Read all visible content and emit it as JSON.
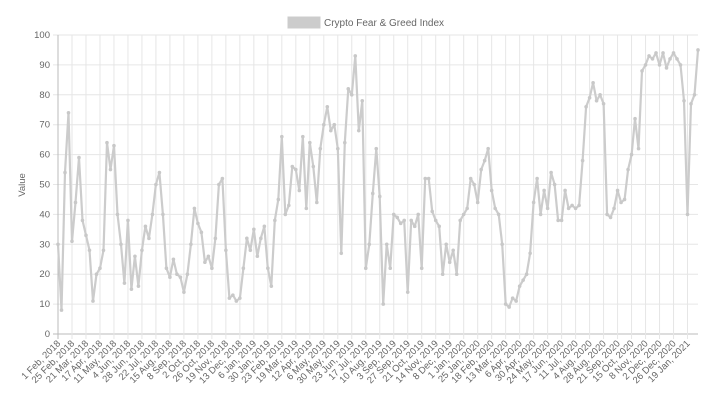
{
  "chart_data": {
    "type": "line",
    "legend": {
      "position": "top",
      "entries": [
        "Crypto Fear & Greed Index"
      ]
    },
    "series": [
      {
        "name": "Crypto Fear & Greed Index",
        "color": "#cccccc",
        "values": [
          30,
          8,
          54,
          74,
          31,
          44,
          59,
          38,
          33,
          28,
          11,
          20,
          22,
          28,
          64,
          55,
          63,
          40,
          30,
          17,
          38,
          15,
          26,
          16,
          28,
          36,
          32,
          40,
          50,
          54,
          40,
          22,
          19,
          25,
          20,
          19,
          14,
          20,
          30,
          42,
          37,
          34,
          24,
          26,
          22,
          32,
          50,
          52,
          28,
          12,
          13,
          11,
          12,
          22,
          32,
          28,
          35,
          26,
          32,
          36,
          22,
          16,
          38,
          45,
          66,
          40,
          43,
          56,
          55,
          48,
          66,
          42,
          64,
          56,
          44,
          62,
          70,
          76,
          68,
          70,
          62,
          27,
          64,
          82,
          80,
          93,
          68,
          78,
          22,
          30,
          47,
          62,
          46,
          10,
          30,
          22,
          40,
          39,
          37,
          38,
          14,
          38,
          36,
          40,
          22,
          52,
          52,
          41,
          38,
          36,
          20,
          30,
          24,
          28,
          20,
          38,
          40,
          42,
          52,
          50,
          44,
          55,
          58,
          62,
          48,
          42,
          40,
          30,
          10,
          9,
          12,
          11,
          16,
          18,
          20,
          27,
          44,
          52,
          40,
          48,
          42,
          54,
          50,
          38,
          38,
          48,
          42,
          43,
          42,
          43,
          58,
          76,
          79,
          84,
          78,
          80,
          77,
          40,
          39,
          42,
          48,
          44,
          45,
          55,
          60,
          72,
          62,
          88,
          90,
          93,
          92,
          94,
          90,
          94,
          89,
          92,
          94,
          92,
          90,
          78,
          40,
          77,
          80,
          95
        ]
      }
    ],
    "x_tick_labels": [
      "1 Feb, 2018",
      "25 Feb, 2018",
      "21 Mar, 2018",
      "17 Apr, 2018",
      "11 May, 2018",
      "4 Jun, 2018",
      "28 Jun, 2018",
      "22 Jul, 2018",
      "15 Aug, 2018",
      "8 Sep, 2018",
      "2 Oct, 2018",
      "26 Oct, 2018",
      "19 Nov, 2018",
      "13 Dec, 2018",
      "6 Jan, 2019",
      "30 Jan, 2019",
      "23 Feb, 2019",
      "19 Mar, 2019",
      "12 Apr, 2019",
      "6 May, 2019",
      "30 May, 2019",
      "23 Jun, 2019",
      "17 Jul, 2019",
      "10 Aug, 2019",
      "3 Sep, 2019",
      "27 Sep, 2019",
      "21 Oct, 2019",
      "14 Nov, 2019",
      "8 Dec, 2019",
      "1 Jan, 2020",
      "25 Jan, 2020",
      "18 Feb, 2020",
      "13 Mar, 2020",
      "6 Apr, 2020",
      "30 Apr, 2020",
      "24 May, 2020",
      "17 Jun, 2020",
      "11 Jul, 2020",
      "4 Aug, 2020",
      "28 Aug, 2020",
      "21 Sep, 2020",
      "15 Oct, 2020",
      "8 Nov, 2020",
      "2 Dec, 2020",
      "26 Dec, 2020",
      "19 Jan, 2021"
    ],
    "ylabel": "Value",
    "xlabel": "",
    "ylim": [
      0,
      100
    ],
    "y_ticks": [
      "0",
      "10",
      "20",
      "30",
      "40",
      "50",
      "60",
      "70",
      "80",
      "90",
      "100"
    ],
    "grid": true,
    "grid_color": "#e6e6e6"
  }
}
